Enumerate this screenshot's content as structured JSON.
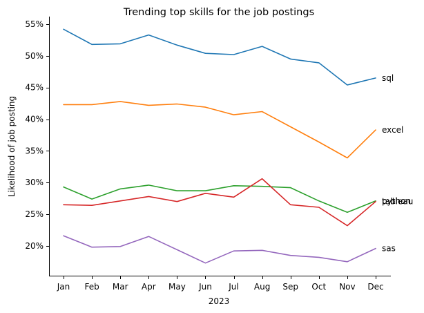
{
  "chart_data": {
    "type": "line",
    "title": "Trending top skills for the job postings",
    "xlabel": "2023",
    "ylabel": "Likelihood of job posting",
    "categories": [
      "Jan",
      "Feb",
      "Mar",
      "Apr",
      "May",
      "Jun",
      "Jul",
      "Aug",
      "Sep",
      "Oct",
      "Nov",
      "Dec"
    ],
    "yticks": [
      20,
      25,
      30,
      35,
      40,
      45,
      50,
      55
    ],
    "ytick_labels": [
      "20%",
      "25%",
      "30%",
      "35%",
      "40%",
      "45%",
      "50%",
      "55%"
    ],
    "ylim": [
      15.3,
      56.2
    ],
    "grid": false,
    "legend": "none",
    "series": [
      {
        "name": "sql",
        "color": "#1f77b4",
        "values": [
          54.2,
          51.8,
          51.9,
          53.3,
          51.7,
          50.4,
          50.2,
          51.5,
          49.5,
          48.9,
          45.4,
          46.5
        ]
      },
      {
        "name": "excel",
        "color": "#ff7f0e",
        "values": [
          42.3,
          42.3,
          42.8,
          42.2,
          42.4,
          41.9,
          40.7,
          41.2,
          38.8,
          36.4,
          33.9,
          38.3
        ]
      },
      {
        "name": "python",
        "color": "#2ca02c",
        "values": [
          29.3,
          27.4,
          29.0,
          29.6,
          28.7,
          28.7,
          29.5,
          29.4,
          29.2,
          27.1,
          25.3,
          27.1
        ]
      },
      {
        "name": "tableau",
        "color": "#d62728",
        "values": [
          26.5,
          26.4,
          27.1,
          27.8,
          27.0,
          28.3,
          27.7,
          30.6,
          26.5,
          26.1,
          23.2,
          27.0
        ]
      },
      {
        "name": "sas",
        "color": "#9467bd",
        "values": [
          21.6,
          19.8,
          19.9,
          21.5,
          19.4,
          17.3,
          19.2,
          19.3,
          18.5,
          18.2,
          17.5,
          19.6
        ]
      }
    ]
  }
}
